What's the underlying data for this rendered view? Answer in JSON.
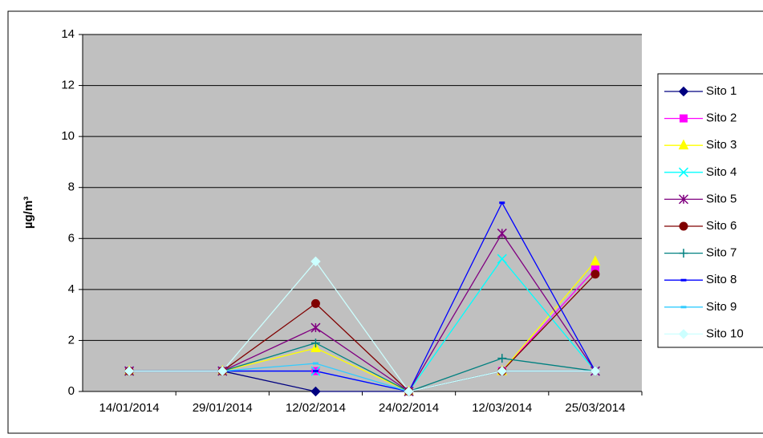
{
  "chart_data": {
    "type": "line",
    "y_label": "µg/m³",
    "categories": [
      "14/01/2014",
      "29/01/2014",
      "12/02/2014",
      "24/02/2014",
      "12/03/2014",
      "25/03/2014"
    ],
    "ylim": [
      0,
      14
    ],
    "yticks": [
      0,
      2,
      4,
      6,
      8,
      10,
      12,
      14
    ],
    "grid": true,
    "legend": "right",
    "series": [
      {
        "name": "Sito 1",
        "color": "#000080",
        "marker": "diamond",
        "values": [
          0.8,
          0.8,
          0,
          0,
          0.8,
          0.8
        ]
      },
      {
        "name": "Sito 2",
        "color": "#ff00ff",
        "marker": "square",
        "values": [
          0.8,
          0.8,
          0.8,
          0,
          0.8,
          4.8
        ]
      },
      {
        "name": "Sito 3",
        "color": "#ffff00",
        "marker": "triangle",
        "values": [
          0.8,
          0.8,
          1.7,
          0,
          0.8,
          5.1
        ]
      },
      {
        "name": "Sito 4",
        "color": "#00ffff",
        "marker": "x",
        "values": [
          0.8,
          0.8,
          0.8,
          0,
          5.2,
          0.8
        ]
      },
      {
        "name": "Sito 5",
        "color": "#800080",
        "marker": "star",
        "values": [
          0.8,
          0.8,
          2.5,
          0,
          6.2,
          0.8
        ]
      },
      {
        "name": "Sito 6",
        "color": "#800000",
        "marker": "circle",
        "values": [
          0.8,
          0.8,
          3.45,
          0,
          0.8,
          4.6
        ]
      },
      {
        "name": "Sito 7",
        "color": "#008080",
        "marker": "plus",
        "values": [
          0.8,
          0.8,
          1.9,
          0,
          1.3,
          0.8
        ]
      },
      {
        "name": "Sito 8",
        "color": "#0000ff",
        "marker": "dash",
        "values": [
          0.8,
          0.8,
          0.8,
          0,
          7.4,
          0.8
        ]
      },
      {
        "name": "Sito 9",
        "color": "#33ccff",
        "marker": "dash",
        "values": [
          0.8,
          0.8,
          1.1,
          0,
          0.8,
          0.8
        ]
      },
      {
        "name": "Sito 10",
        "color": "#ccffff",
        "marker": "diamond",
        "values": [
          0.8,
          0.8,
          5.1,
          0,
          0.8,
          0.8
        ]
      }
    ]
  }
}
